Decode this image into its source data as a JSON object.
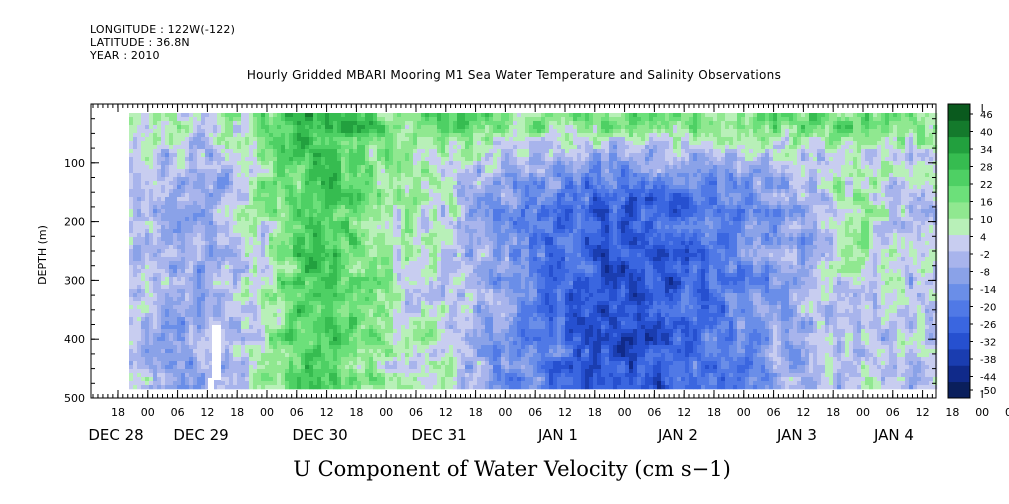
{
  "header": {
    "longitude": "LONGITUDE : 122W(-122)",
    "latitude": "LATITUDE : 36.8N",
    "year": "YEAR : 2010"
  },
  "chart_data": {
    "type": "heatmap",
    "title": "Hourly Gridded MBARI Mooring M1 Sea Water Temperature and Salinity Observations",
    "xlabel": "U Component of Water Velocity (cm s−1)",
    "ylabel": "DEPTH (m)",
    "ylim": [
      500,
      0
    ],
    "y_ticks": [
      100,
      200,
      300,
      400,
      500
    ],
    "x_hour_ticks": [
      "18",
      "00",
      "06",
      "12",
      "18",
      "00",
      "06",
      "12",
      "18",
      "00",
      "06",
      "12",
      "18",
      "00",
      "06",
      "12",
      "18",
      "00",
      "06",
      "12",
      "18",
      "00",
      "06",
      "12",
      "18",
      "00",
      "06",
      "12",
      "18",
      "00",
      "06",
      "12"
    ],
    "x_date_labels": [
      "DEC 28",
      "DEC 29",
      "DEC 30",
      "DEC 31",
      "JAN  1",
      "JAN  2",
      "JAN  3",
      "JAN  4"
    ],
    "colorbar": {
      "levels": [
        -50,
        -44,
        -38,
        -32,
        -26,
        -20,
        -14,
        -8,
        -2,
        4,
        10,
        16,
        22,
        28,
        34,
        40,
        46
      ],
      "labels": [
        "46",
        "40",
        "34",
        "28",
        "22",
        "16",
        "10",
        "4",
        "-2",
        "-8",
        "-14",
        "-20",
        "-26",
        "-32",
        "-38",
        "-44",
        "-50"
      ],
      "colors": [
        "#0a1f5c",
        "#102a8a",
        "#1a3db0",
        "#2650d0",
        "#3a66e0",
        "#5079e6",
        "#6a8ee8",
        "#8aa2e8",
        "#a8b4ec",
        "#c8cdf0",
        "#b8f0b8",
        "#90e890",
        "#6ce07a",
        "#4ed064",
        "#36bc50",
        "#22a03e",
        "#147a2c",
        "#0a5a1e"
      ]
    },
    "regions": [
      {
        "time": "DEC 29 00 – DEC 30 00",
        "value_range": [
          -14,
          22
        ],
        "description": "mixed"
      },
      {
        "time": "DEC 30",
        "value_range": [
          16,
          46
        ]
      },
      {
        "time": "JAN 1 – JAN 2 (100–400 m)",
        "value_range": [
          -38,
          -8
        ]
      }
    ]
  }
}
